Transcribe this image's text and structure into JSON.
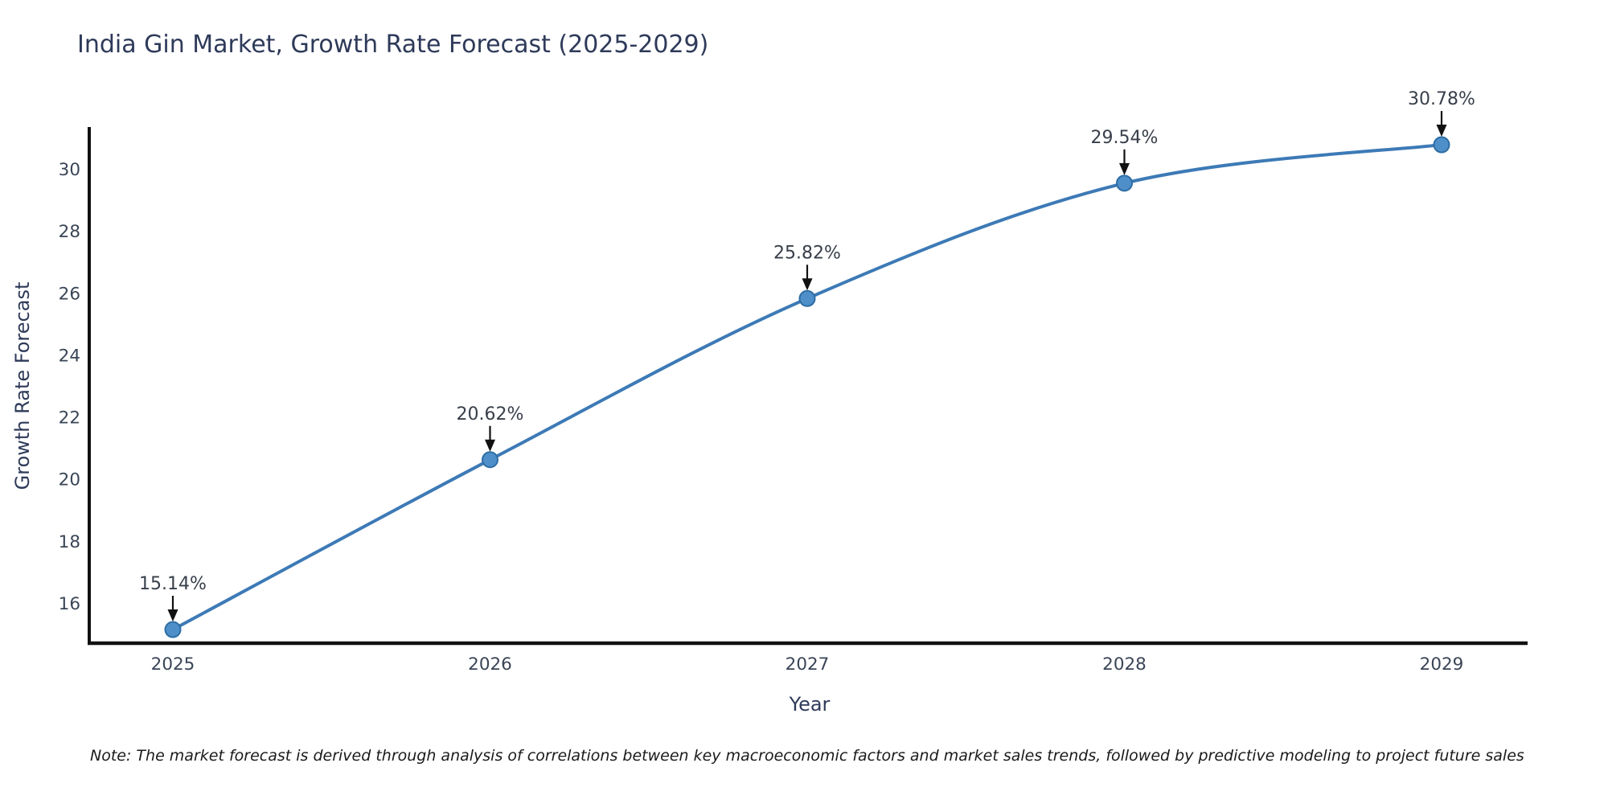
{
  "header": {
    "title": "India Gin Market, Growth Rate Forecast (2025-2029)"
  },
  "footer": {
    "note": "Note: The market forecast is derived through analysis of correlations between key macroeconomic factors and market sales trends, followed by predictive modeling to project future sales"
  },
  "chart_data": {
    "type": "line",
    "title": "India Gin Market, Growth Rate Forecast (2025-2029)",
    "xlabel": "Year",
    "ylabel": "Growth Rate Forecast",
    "categories": [
      "2025",
      "2026",
      "2027",
      "2028",
      "2029"
    ],
    "series": [
      {
        "name": "Growth Rate Forecast",
        "values": [
          15.14,
          20.62,
          25.82,
          29.54,
          30.78
        ]
      }
    ],
    "point_labels": [
      "15.14%",
      "20.62%",
      "25.82%",
      "29.54%",
      "30.78%"
    ],
    "yticks": [
      16,
      18,
      20,
      22,
      24,
      26,
      28,
      30
    ],
    "ylim": [
      14.7,
      31.3
    ],
    "grid": false,
    "legend": "none",
    "line_smooth": true,
    "colors": {
      "line": "#3d7ab6",
      "marker_fill": "#4e8fca",
      "marker_edge": "#2e6da4",
      "axis": "#111111",
      "title_text": "#2e3a59",
      "tick_text": "#3a4556",
      "annotation_text": "#383f4a",
      "arrow": "#111111",
      "note_text": "#1a1a1a"
    }
  }
}
